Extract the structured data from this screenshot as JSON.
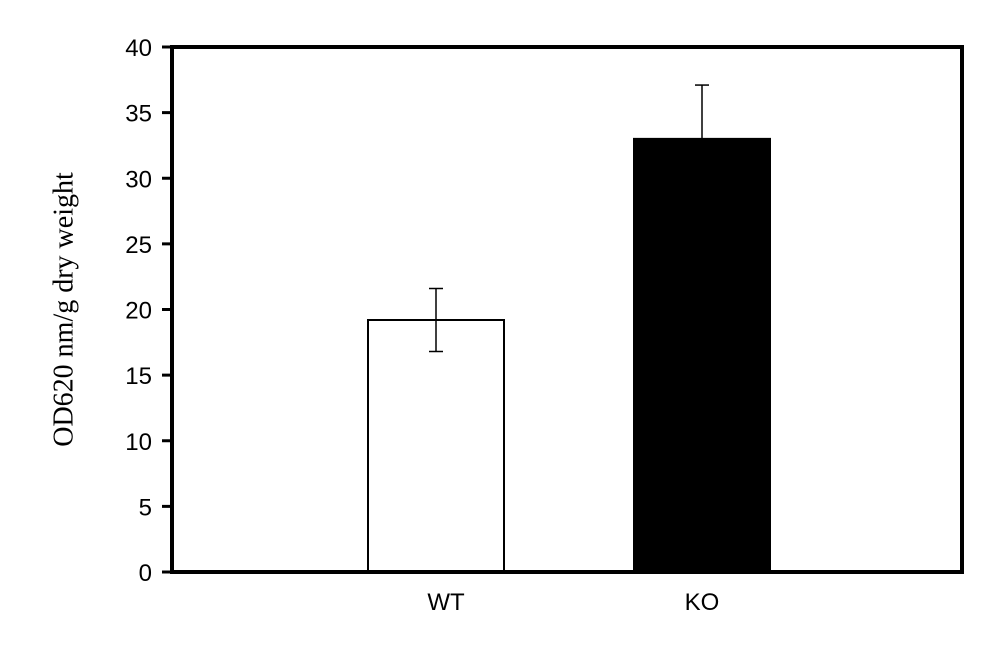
{
  "chart_data": {
    "type": "bar",
    "title": "",
    "xlabel": "",
    "ylabel": "OD620 nm/g dry weight",
    "ylim": [
      0,
      40
    ],
    "yticks": [
      0,
      5,
      10,
      15,
      20,
      25,
      30,
      35,
      40
    ],
    "grid": false,
    "legend": "none",
    "categories": [
      "WT",
      "KO"
    ],
    "values": [
      19.2,
      33.0
    ],
    "errors": [
      2.4,
      4.1
    ],
    "colors": [
      "#ffffff",
      "#000000"
    ]
  }
}
